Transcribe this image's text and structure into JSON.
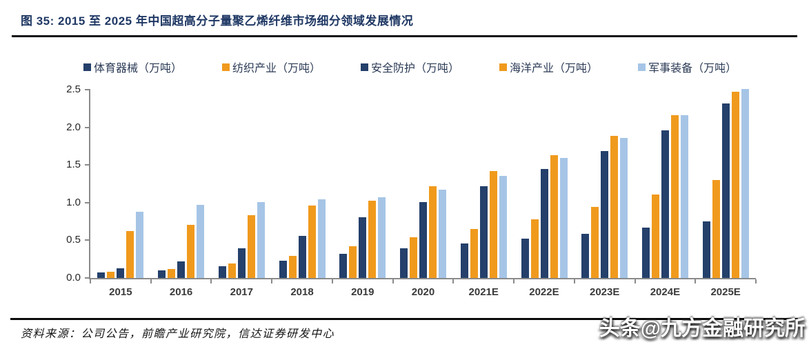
{
  "page": {
    "figure_title": "图 35:  2015 至 2025 年中国超高分子量聚乙烯纤维市场细分领域发展情况",
    "source_note": "资料来源：公司公告，前瞻产业研究院，信达证券研发中心",
    "watermark": "头条@九方金融研究所"
  },
  "colors": {
    "navy": "#24406B",
    "orange": "#F09A1D",
    "light_blue": "#A6C5E6",
    "title_navy": "#1F3864",
    "axis_gray": "#8A8A8A"
  },
  "chart_data": {
    "type": "bar",
    "title": "2015 至 2025 年中国超高分子量聚乙烯纤维市场细分领域发展情况",
    "xlabel": "",
    "ylabel": "",
    "unit": "万吨",
    "categories": [
      "2015",
      "2016",
      "2017",
      "2018",
      "2019",
      "2020",
      "2021E",
      "2022E",
      "2023E",
      "2024E",
      "2025E"
    ],
    "series": [
      {
        "name": "体育器械（万吨）",
        "color": "#24406B",
        "values": [
          0.07,
          0.1,
          0.16,
          0.23,
          0.32,
          0.39,
          0.46,
          0.52,
          0.59,
          0.67,
          0.75
        ]
      },
      {
        "name": "纺织产业（万吨）",
        "color": "#F09A1D",
        "values": [
          0.08,
          0.12,
          0.19,
          0.29,
          0.42,
          0.54,
          0.65,
          0.78,
          0.94,
          1.11,
          1.3
        ]
      },
      {
        "name": "安全防护（万吨）",
        "color": "#24406B",
        "values": [
          0.13,
          0.22,
          0.39,
          0.56,
          0.81,
          1.01,
          1.22,
          1.45,
          1.69,
          1.96,
          2.32
        ]
      },
      {
        "name": "海洋产业（万吨）",
        "color": "#F09A1D",
        "values": [
          0.62,
          0.71,
          0.83,
          0.96,
          1.03,
          1.22,
          1.42,
          1.63,
          1.89,
          2.16,
          2.47
        ]
      },
      {
        "name": "军事装备（万吨）",
        "color": "#A6C5E6",
        "values": [
          0.88,
          0.97,
          1.01,
          1.04,
          1.07,
          1.17,
          1.36,
          1.59,
          1.86,
          2.16,
          2.51
        ]
      }
    ],
    "ylim": [
      0,
      2.5
    ],
    "ytick_step": 0.5,
    "yticks": [
      "0.0",
      "0.5",
      "1.0",
      "1.5",
      "2.0",
      "2.5"
    ],
    "grid": false,
    "legend_position": "top"
  }
}
